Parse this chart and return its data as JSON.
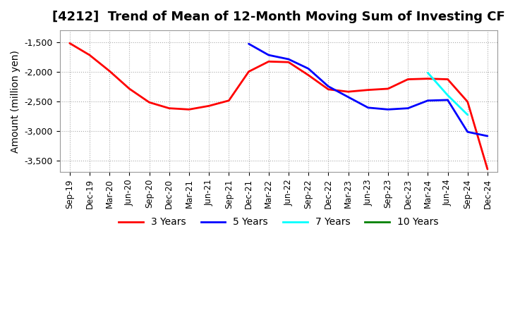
{
  "title": "[4212]  Trend of Mean of 12-Month Moving Sum of Investing CF",
  "ylabel": "Amount (million yen)",
  "ylim": [
    -3700,
    -1300
  ],
  "yticks": [
    -3500,
    -3000,
    -2500,
    -2000,
    -1500
  ],
  "background_color": "#ffffff",
  "plot_bg_color": "#ffffff",
  "grid_color": "#aaaaaa",
  "title_fontsize": 13,
  "axis_fontsize": 10,
  "legend_fontsize": 10,
  "x_labels": [
    "Sep-19",
    "Dec-19",
    "Mar-20",
    "Jun-20",
    "Sep-20",
    "Dec-20",
    "Mar-21",
    "Jun-21",
    "Sep-21",
    "Dec-21",
    "Mar-22",
    "Jun-22",
    "Sep-22",
    "Dec-22",
    "Mar-23",
    "Jun-23",
    "Sep-23",
    "Dec-23",
    "Mar-24",
    "Jun-24",
    "Sep-24",
    "Dec-24"
  ],
  "series_3y": {
    "color": "#ff0000",
    "label": "3 Years",
    "x": [
      0,
      1,
      2,
      3,
      4,
      5,
      6,
      7,
      8,
      9,
      10,
      11,
      12,
      13,
      14,
      15,
      16,
      17,
      18,
      19,
      20,
      21
    ],
    "y": [
      -1520,
      -1720,
      -1990,
      -2290,
      -2520,
      -2620,
      -2640,
      -2580,
      -2490,
      -2000,
      -1830,
      -1840,
      -2060,
      -2300,
      -2340,
      -2310,
      -2290,
      -2130,
      -2120,
      -2130,
      -2510,
      -3650
    ]
  },
  "series_5y": {
    "color": "#0000ff",
    "label": "5 Years",
    "x": [
      9,
      10,
      11,
      12,
      13,
      14,
      15,
      16,
      17,
      18,
      19,
      20,
      21
    ],
    "y": [
      -1530,
      -1720,
      -1790,
      -1950,
      -2250,
      -2430,
      -2610,
      -2640,
      -2620,
      -2490,
      -2480,
      -3020,
      -3090
    ]
  },
  "series_7y": {
    "color": "#00ffff",
    "label": "7 Years",
    "x": [
      18,
      19,
      20
    ],
    "y": [
      -2020,
      -2400,
      -2730
    ]
  },
  "series_10y": {
    "color": "#008000",
    "label": "10 Years",
    "x": [],
    "y": []
  }
}
